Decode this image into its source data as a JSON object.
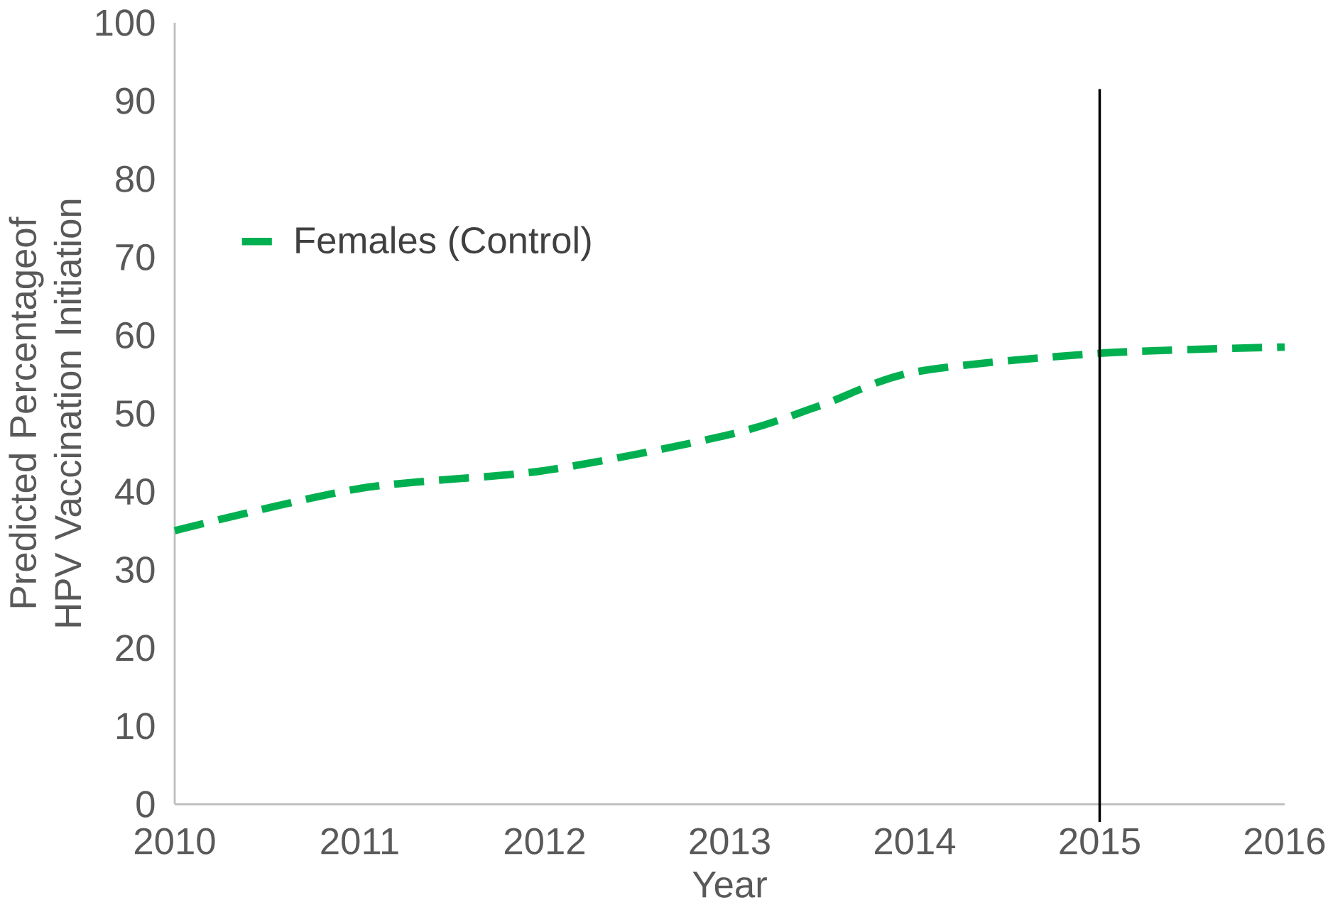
{
  "chart_data": {
    "type": "line",
    "xlabel": "Year",
    "ylabel": "Predicted Percentageof HPV Vaccination Initiation",
    "x": [
      2010,
      2011,
      2012,
      2013,
      2013.5,
      2014,
      2015,
      2016
    ],
    "series": [
      {
        "name": "Females (Control)",
        "color": "#00b050",
        "values": [
          35,
          40.4,
          42.7,
          47.3,
          51.1,
          55.3,
          57.7,
          58.5
        ],
        "line_style": "dashed",
        "marker": "none"
      }
    ],
    "xlim": [
      2010,
      2016
    ],
    "xticks": [
      2010,
      2011,
      2012,
      2013,
      2014,
      2015,
      2016
    ],
    "ylim": [
      0,
      100
    ],
    "yticks": [
      0,
      10,
      20,
      30,
      40,
      50,
      60,
      70,
      80,
      90,
      100
    ],
    "ref_lines": [
      {
        "axis": "x",
        "value": 2015,
        "color": "#000000"
      }
    ],
    "legend": "top left",
    "grid": false
  }
}
